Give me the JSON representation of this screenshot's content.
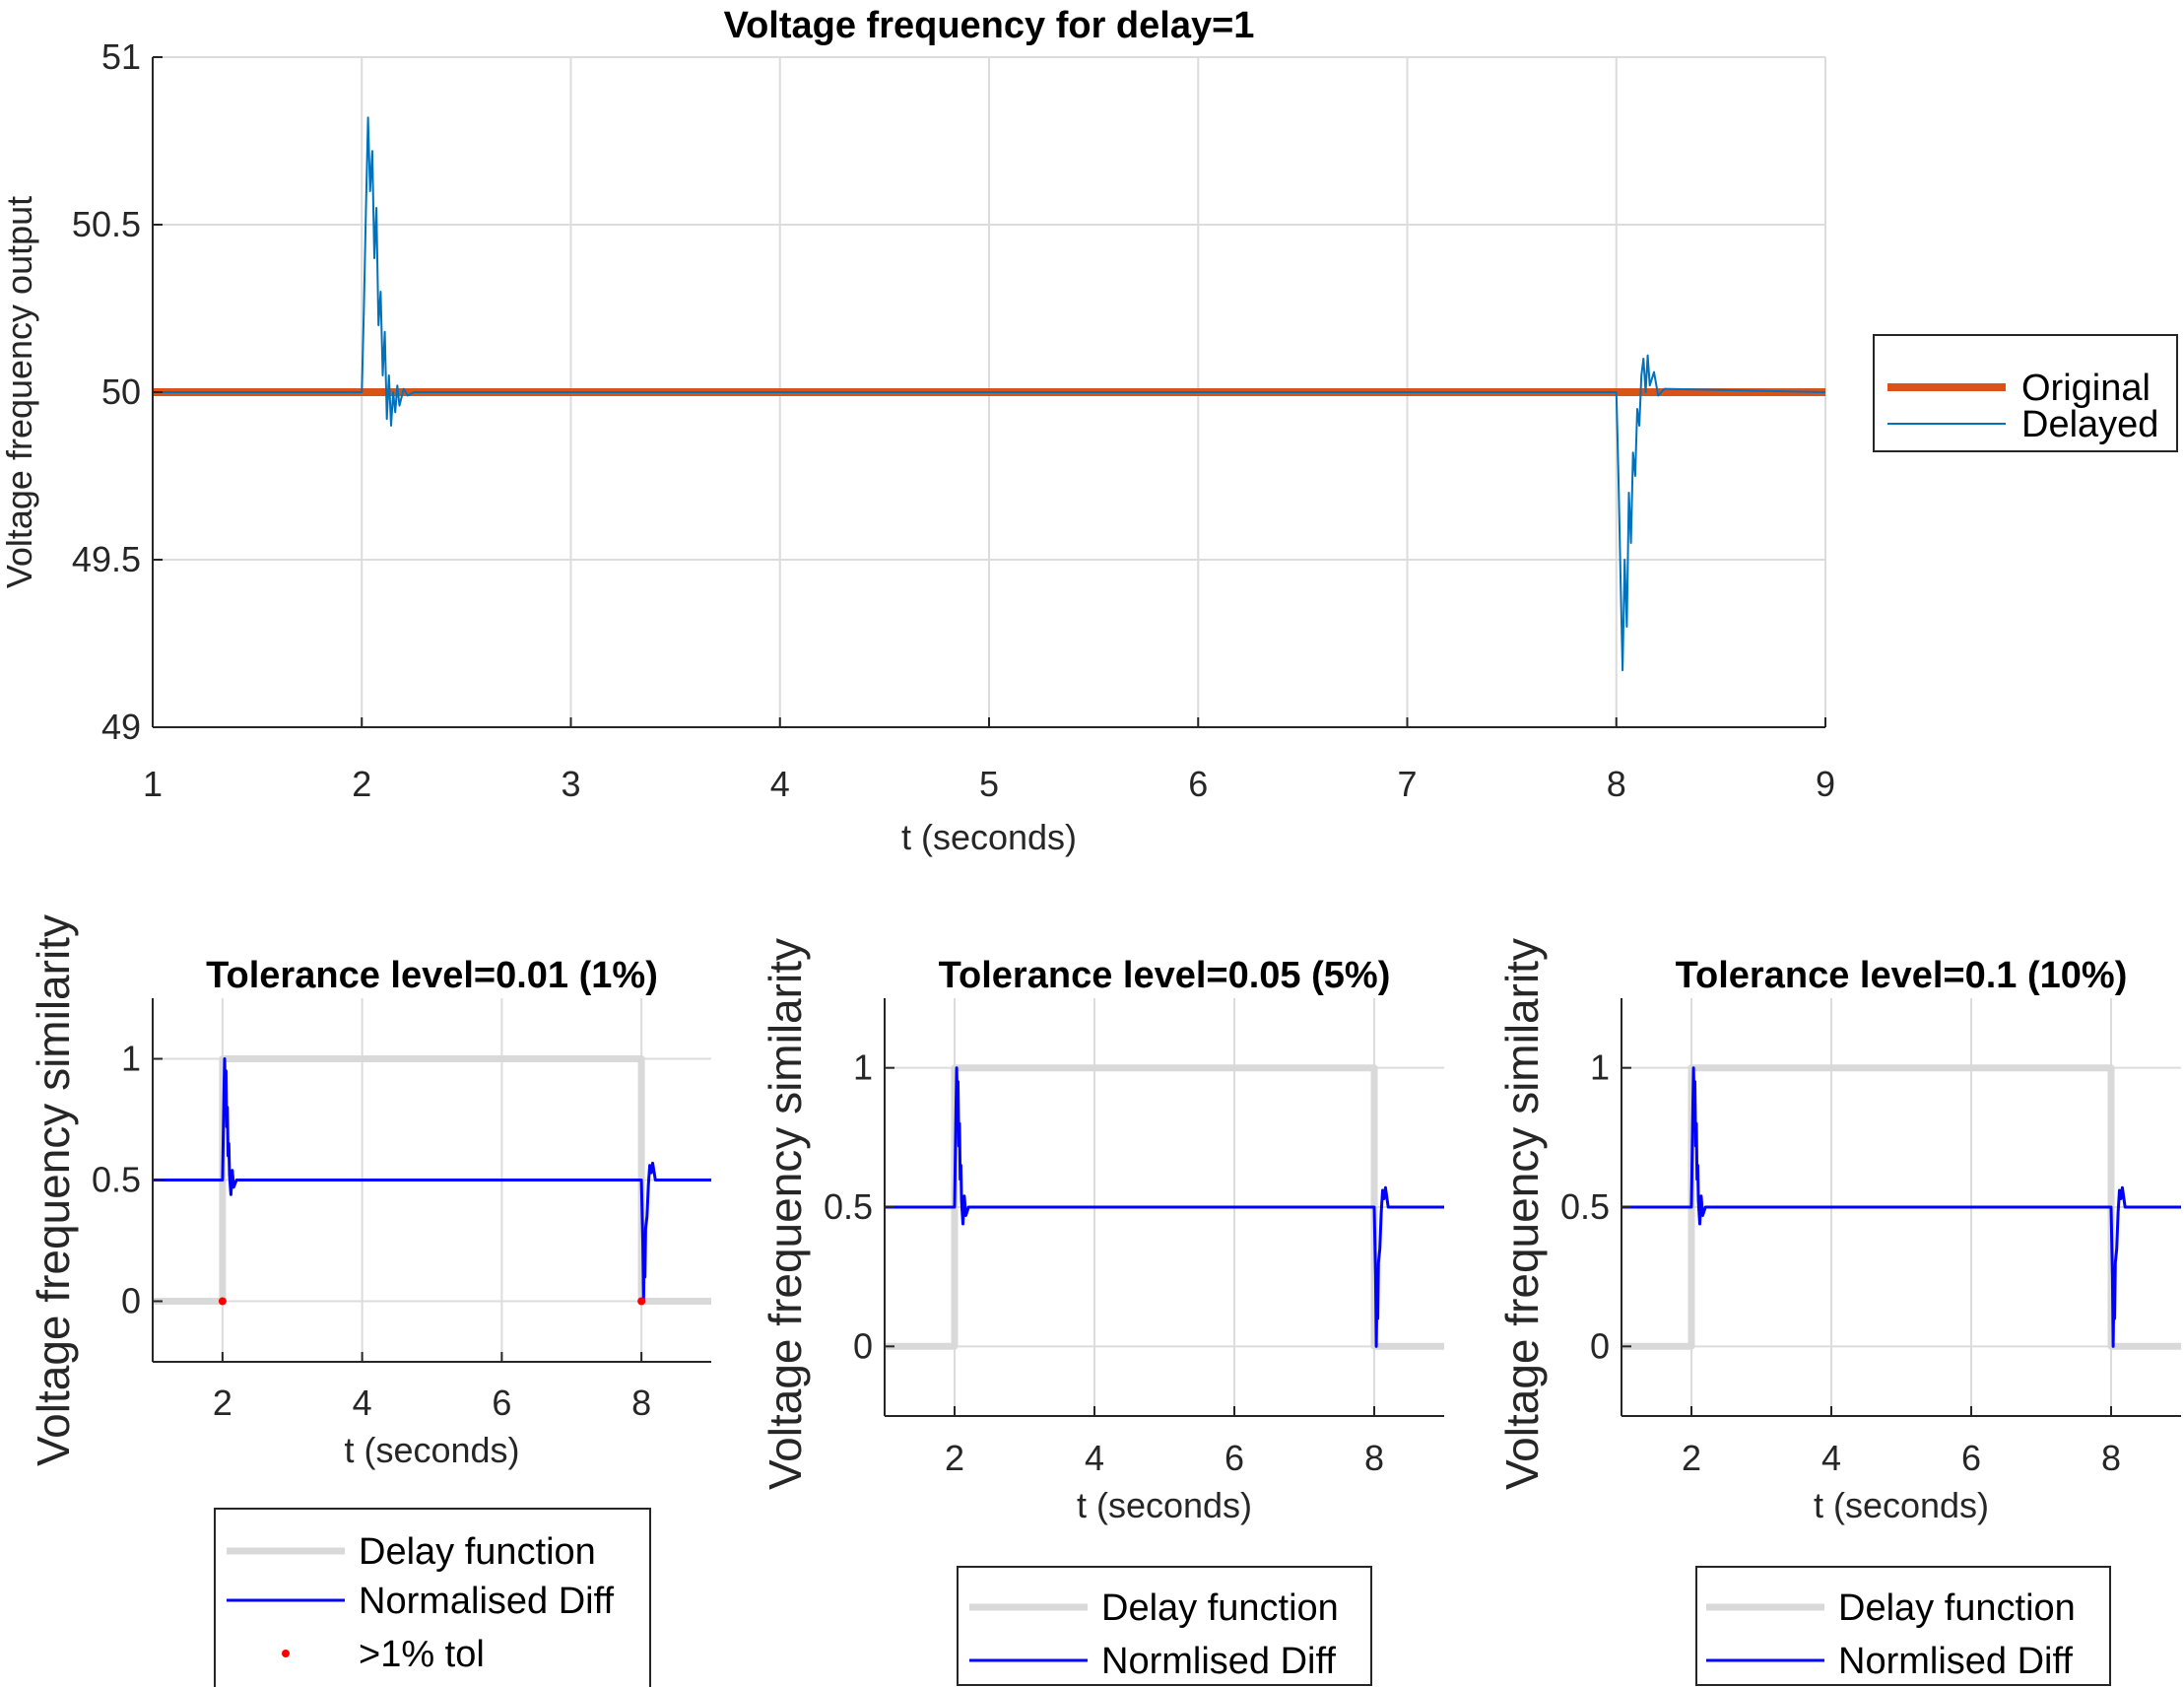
{
  "chart_data": [
    {
      "type": "line",
      "title": "Voltage frequency for delay=1",
      "xlabel": "t (seconds)",
      "ylabel": "Voltage frequency output",
      "xlim": [
        1,
        9
      ],
      "ylim": [
        49,
        51
      ],
      "xticks": [
        "1",
        "2",
        "3",
        "4",
        "5",
        "6",
        "7",
        "8",
        "9"
      ],
      "yticks": [
        "49",
        "49.5",
        "50",
        "50.5",
        "51"
      ],
      "grid": true,
      "legend": "right",
      "series": [
        {
          "name": "Original",
          "color": "#d95319",
          "x": [
            1,
            9
          ],
          "y": [
            50,
            50
          ]
        },
        {
          "name": "Delayed",
          "color": "#0072bd",
          "x": [
            1,
            2.0,
            2.01,
            2.02,
            2.03,
            2.04,
            2.05,
            2.06,
            2.07,
            2.08,
            2.09,
            2.1,
            2.11,
            2.12,
            2.13,
            2.14,
            2.15,
            2.16,
            2.17,
            2.18,
            2.2,
            2.22,
            2.25,
            8.0,
            8.01,
            8.02,
            8.03,
            8.04,
            8.05,
            8.06,
            8.07,
            8.08,
            8.09,
            8.1,
            8.11,
            8.12,
            8.13,
            8.14,
            8.15,
            8.16,
            8.18,
            8.2,
            8.23,
            9
          ],
          "y": [
            50,
            50,
            50.25,
            50.55,
            50.82,
            50.6,
            50.72,
            50.4,
            50.55,
            50.2,
            50.3,
            50.05,
            50.18,
            49.92,
            50.05,
            49.9,
            50.0,
            49.94,
            50.02,
            49.96,
            50.01,
            49.99,
            50,
            50,
            49.75,
            49.45,
            49.17,
            49.5,
            49.3,
            49.7,
            49.55,
            49.82,
            49.75,
            49.95,
            49.9,
            50.05,
            50.1,
            50.0,
            50.11,
            50.02,
            50.06,
            49.99,
            50.01,
            50
          ]
        }
      ]
    },
    {
      "type": "line",
      "title": "Tolerance level=0.01 (1%)",
      "xlabel": "t (seconds)",
      "ylabel": "Voltage frequency similarity",
      "xlim": [
        1,
        9
      ],
      "ylim": [
        -0.25,
        1.25
      ],
      "xticks": [
        "2",
        "4",
        "6",
        "8"
      ],
      "yticks": [
        "0",
        "0.5",
        "1"
      ],
      "grid": true,
      "legend": "bottom",
      "series": [
        {
          "name": "Delay function",
          "color": "#d9d9d9",
          "x": [
            1,
            2,
            2,
            8,
            8,
            9
          ],
          "y": [
            0,
            0,
            1,
            1,
            0,
            0
          ]
        },
        {
          "name": "Normalised Diff",
          "color": "#0000ff",
          "x": [
            1,
            2.0,
            2.02,
            2.03,
            2.04,
            2.05,
            2.06,
            2.07,
            2.08,
            2.09,
            2.1,
            2.12,
            2.14,
            2.16,
            2.2,
            8.0,
            8.02,
            8.03,
            8.04,
            8.05,
            8.06,
            8.08,
            8.1,
            8.12,
            8.14,
            8.16,
            8.2,
            9
          ],
          "y": [
            0.5,
            0.5,
            0.85,
            1.0,
            0.88,
            0.95,
            0.72,
            0.8,
            0.6,
            0.65,
            0.52,
            0.44,
            0.54,
            0.47,
            0.5,
            0.5,
            0.25,
            0.0,
            0.2,
            0.1,
            0.3,
            0.35,
            0.48,
            0.56,
            0.53,
            0.57,
            0.5,
            0.5
          ]
        },
        {
          "name": ">1% tol",
          "color": "#ff0000",
          "type": "scatter",
          "x": [
            2.0,
            8.0
          ],
          "y": [
            0,
            0
          ]
        }
      ]
    },
    {
      "type": "line",
      "title": "Tolerance level=0.05 (5%)",
      "xlabel": "t (seconds)",
      "ylabel": "Voltage frequency similarity",
      "xlim": [
        1,
        9
      ],
      "ylim": [
        -0.25,
        1.25
      ],
      "xticks": [
        "2",
        "4",
        "6",
        "8"
      ],
      "yticks": [
        "0",
        "0.5",
        "1"
      ],
      "grid": true,
      "legend": "bottom",
      "series": [
        {
          "name": "Delay function",
          "color": "#d9d9d9",
          "x": [
            1,
            2,
            2,
            8,
            8,
            9
          ],
          "y": [
            0,
            0,
            1,
            1,
            0,
            0
          ]
        },
        {
          "name": "Normlised Diff",
          "color": "#0000ff",
          "x": [
            1,
            2.0,
            2.02,
            2.03,
            2.04,
            2.05,
            2.06,
            2.07,
            2.08,
            2.09,
            2.1,
            2.12,
            2.14,
            2.16,
            2.2,
            8.0,
            8.02,
            8.03,
            8.04,
            8.05,
            8.06,
            8.08,
            8.1,
            8.12,
            8.14,
            8.16,
            8.2,
            9
          ],
          "y": [
            0.5,
            0.5,
            0.85,
            1.0,
            0.88,
            0.95,
            0.72,
            0.8,
            0.6,
            0.65,
            0.52,
            0.44,
            0.54,
            0.47,
            0.5,
            0.5,
            0.25,
            0.0,
            0.2,
            0.1,
            0.3,
            0.35,
            0.48,
            0.56,
            0.53,
            0.57,
            0.5,
            0.5
          ]
        }
      ]
    },
    {
      "type": "line",
      "title": "Tolerance level=0.1 (10%)",
      "xlabel": "t (seconds)",
      "ylabel": "Voltage frequency similarity",
      "xlim": [
        1,
        9
      ],
      "ylim": [
        -0.25,
        1.25
      ],
      "xticks": [
        "2",
        "4",
        "6",
        "8"
      ],
      "yticks": [
        "0",
        "0.5",
        "1"
      ],
      "grid": true,
      "legend": "bottom",
      "series": [
        {
          "name": "Delay function",
          "color": "#d9d9d9",
          "x": [
            1,
            2,
            2,
            8,
            8,
            9
          ],
          "y": [
            0,
            0,
            1,
            1,
            0,
            0
          ]
        },
        {
          "name": "Normlised Diff",
          "color": "#0000ff",
          "x": [
            1,
            2.0,
            2.02,
            2.03,
            2.04,
            2.05,
            2.06,
            2.07,
            2.08,
            2.09,
            2.1,
            2.12,
            2.14,
            2.16,
            2.2,
            8.0,
            8.02,
            8.03,
            8.04,
            8.05,
            8.06,
            8.08,
            8.1,
            8.12,
            8.14,
            8.16,
            8.2,
            9
          ],
          "y": [
            0.5,
            0.5,
            0.85,
            1.0,
            0.88,
            0.95,
            0.72,
            0.8,
            0.6,
            0.65,
            0.52,
            0.44,
            0.54,
            0.47,
            0.5,
            0.5,
            0.25,
            0.0,
            0.2,
            0.1,
            0.3,
            0.35,
            0.48,
            0.56,
            0.53,
            0.57,
            0.5,
            0.5
          ]
        }
      ]
    }
  ]
}
